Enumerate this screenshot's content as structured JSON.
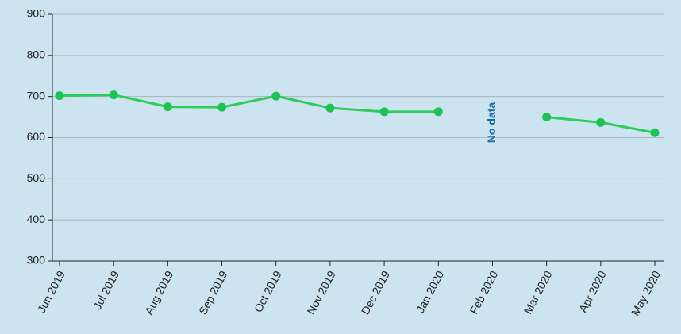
{
  "chart_data": {
    "type": "line",
    "categories": [
      "Jun 2019",
      "Jul 2019",
      "Aug 2019",
      "Sep 2019",
      "Oct 2019",
      "Nov 2019",
      "Dec 2019",
      "Jan 2020",
      "Feb 2020",
      "Mar 2020",
      "Apr 2020",
      "May 2020"
    ],
    "values": [
      702,
      704,
      675,
      674,
      701,
      672,
      663,
      663,
      null,
      650,
      637,
      612
    ],
    "color": "#2ecc5f",
    "marker_color": "#1dc350",
    "ylim": [
      300,
      900
    ],
    "yticks": [
      300,
      400,
      500,
      600,
      700,
      800,
      900
    ],
    "grid": true,
    "annotations": [
      {
        "text": "No data",
        "x": "Feb 2020",
        "color": "#1a6aa8"
      }
    ]
  }
}
